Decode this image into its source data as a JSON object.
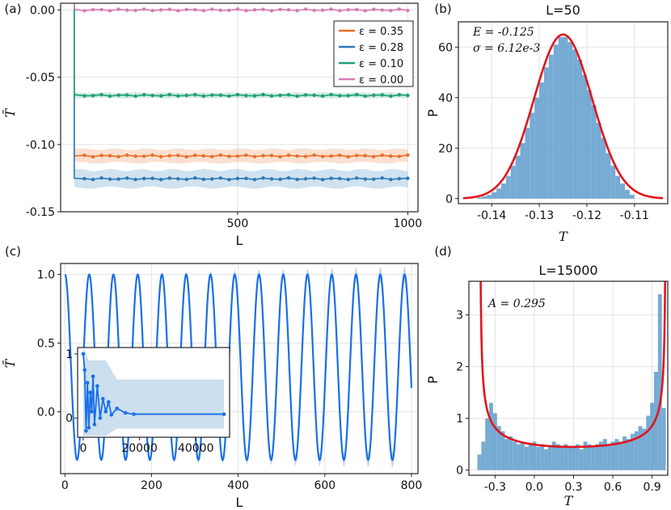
{
  "colors": {
    "orange": "#e8702a",
    "blue": "#2a7ab8",
    "green": "#1f9e78",
    "pink": "#d97ab6",
    "hist": "#5e9ccb",
    "fit": "#e3141c",
    "traj": "#1a6fe8",
    "band": "#a9c9e3"
  },
  "chart_data": [
    {
      "panel": "(a)",
      "type": "line",
      "xlabel": "L",
      "ylabel": "T̄",
      "xlim": [
        -20,
        1030
      ],
      "ylim": [
        -0.15,
        0.005
      ],
      "xticks": [
        "500",
        "1000"
      ],
      "xtick_values": [
        500,
        1000
      ],
      "yticks": [
        "0.00",
        "-0.05",
        "-0.10",
        "-0.15"
      ],
      "ytick_values": [
        0.0,
        -0.05,
        -0.1,
        -0.15
      ],
      "x": [
        20,
        50,
        75,
        100,
        125,
        150,
        175,
        200,
        225,
        250,
        275,
        300,
        325,
        350,
        375,
        400,
        425,
        450,
        475,
        500,
        525,
        550,
        575,
        600,
        625,
        650,
        675,
        700,
        725,
        750,
        775,
        800,
        825,
        850,
        875,
        900,
        925,
        950,
        975,
        1000
      ],
      "series": [
        {
          "name": "ε=0.35",
          "color_key": "orange",
          "value": -0.1085,
          "band": 0.005
        },
        {
          "name": "ε=0.28",
          "color_key": "blue",
          "value": -0.1255,
          "band": 0.0065
        },
        {
          "name": "ε=0.10",
          "color_key": "green",
          "value": -0.0635,
          "band": 0.002
        },
        {
          "name": "ε=0.00",
          "color_key": "pink",
          "value": 0.0,
          "band": 0.0005
        }
      ],
      "legend": [
        "ε = 0.35",
        "ε = 0.28",
        "ε = 0.10",
        "ε = 0.00"
      ],
      "legend_position": "top-right"
    },
    {
      "panel": "(b)",
      "type": "bar",
      "title": "L=50",
      "xlabel": "T",
      "ylabel": "P",
      "xlim": [
        -0.147,
        -0.103
      ],
      "ylim": [
        -2,
        70
      ],
      "xticks": [
        "-0.14",
        "-0.13",
        "-0.12",
        "-0.11"
      ],
      "xtick_values": [
        -0.14,
        -0.13,
        -0.12,
        -0.11
      ],
      "yticks": [
        "0",
        "20",
        "40",
        "60"
      ],
      "ytick_values": [
        0,
        20,
        40,
        60
      ],
      "mean": -0.125,
      "sigma": 0.00612,
      "peak": 65,
      "annotation_E": "E = -0.125",
      "annotation_sigma": "σ = 6.12e-3",
      "bins": [
        -0.1425,
        -0.1415,
        -0.1405,
        -0.1395,
        -0.1385,
        -0.1375,
        -0.1365,
        -0.1355,
        -0.1345,
        -0.1335,
        -0.1325,
        -0.1315,
        -0.1305,
        -0.1295,
        -0.1285,
        -0.1275,
        -0.1265,
        -0.1255,
        -0.1245,
        -0.1235,
        -0.1225,
        -0.1215,
        -0.1205,
        -0.1195,
        -0.1185,
        -0.1175,
        -0.1165,
        -0.1155,
        -0.1145,
        -0.1135,
        -0.1125,
        -0.1115,
        -0.1105
      ],
      "values": [
        0.5,
        1,
        1.5,
        2.5,
        4,
        6,
        9,
        13,
        17,
        22,
        28,
        34,
        40,
        46,
        52,
        57,
        61,
        64,
        64,
        62,
        59,
        55,
        49,
        43,
        37,
        30,
        24,
        18,
        13,
        9,
        6,
        3.5,
        1.5
      ]
    },
    {
      "panel": "(c)",
      "type": "line",
      "xlabel": "L",
      "ylabel": "T̄",
      "xlim": [
        -10,
        815
      ],
      "ylim": [
        -0.45,
        1.08
      ],
      "xticks": [
        "0",
        "200",
        "400",
        "600",
        "800"
      ],
      "xtick_values": [
        0,
        200,
        400,
        600,
        800
      ],
      "yticks": [
        "1.0",
        "0.5",
        "0.0"
      ],
      "ytick_values": [
        1.0,
        0.5,
        0.0
      ],
      "period": 56,
      "inset": {
        "xticks": [
          "0",
          "20000",
          "40000"
        ],
        "xtick_values": [
          0,
          20000,
          40000
        ],
        "yticks": [
          "1",
          "0"
        ],
        "ytick_values": [
          1,
          0
        ],
        "xlim": [
          -2000,
          52000
        ],
        "ylim": [
          -0.3,
          1.1
        ],
        "x": [
          0,
          500,
          1000,
          1500,
          2000,
          2500,
          3000,
          3500,
          4000,
          5000,
          6000,
          7000,
          8000,
          9000,
          10000,
          12000,
          15000,
          18000,
          50000
        ],
        "y": [
          1.0,
          0.75,
          -0.2,
          0.55,
          -0.15,
          0.4,
          0.1,
          0.65,
          -0.1,
          0.5,
          0.0,
          0.3,
          0.1,
          0.25,
          0.05,
          0.15,
          0.08,
          0.06,
          0.06
        ]
      }
    },
    {
      "panel": "(d)",
      "type": "bar",
      "title": "L=15000",
      "xlabel": "T",
      "ylabel": "P",
      "xlim": [
        -0.5,
        1.02
      ],
      "ylim": [
        -0.1,
        3.65
      ],
      "xticks": [
        "-0.3",
        "0.0",
        "0.3",
        "0.6",
        "0.9"
      ],
      "xtick_values": [
        -0.3,
        0.0,
        0.3,
        0.6,
        0.9
      ],
      "yticks": [
        "0",
        "1",
        "2",
        "3"
      ],
      "ytick_values": [
        0,
        1,
        2,
        3
      ],
      "annotation_A": "A = 0.295",
      "center": 0.295,
      "amplitude": 0.71,
      "bins": [
        -0.42,
        -0.39,
        -0.36,
        -0.33,
        -0.3,
        -0.27,
        -0.24,
        -0.21,
        -0.18,
        -0.15,
        -0.12,
        -0.09,
        -0.06,
        -0.03,
        0.0,
        0.03,
        0.06,
        0.09,
        0.12,
        0.15,
        0.18,
        0.21,
        0.24,
        0.27,
        0.3,
        0.33,
        0.36,
        0.39,
        0.42,
        0.45,
        0.48,
        0.51,
        0.54,
        0.57,
        0.6,
        0.63,
        0.66,
        0.69,
        0.72,
        0.75,
        0.78,
        0.81,
        0.84,
        0.87,
        0.9,
        0.93,
        0.96,
        0.99
      ],
      "values": [
        0.3,
        0.55,
        1.0,
        1.3,
        1.1,
        0.85,
        0.75,
        0.6,
        0.65,
        0.55,
        0.5,
        0.55,
        0.45,
        0.5,
        0.55,
        0.45,
        0.5,
        0.4,
        0.45,
        0.55,
        0.5,
        0.45,
        0.5,
        0.45,
        0.45,
        0.5,
        0.4,
        0.55,
        0.5,
        0.45,
        0.5,
        0.55,
        0.6,
        0.5,
        0.55,
        0.6,
        0.55,
        0.65,
        0.6,
        0.7,
        0.75,
        0.85,
        0.8,
        1.05,
        1.3,
        1.9,
        3.4,
        1.2
      ]
    }
  ]
}
